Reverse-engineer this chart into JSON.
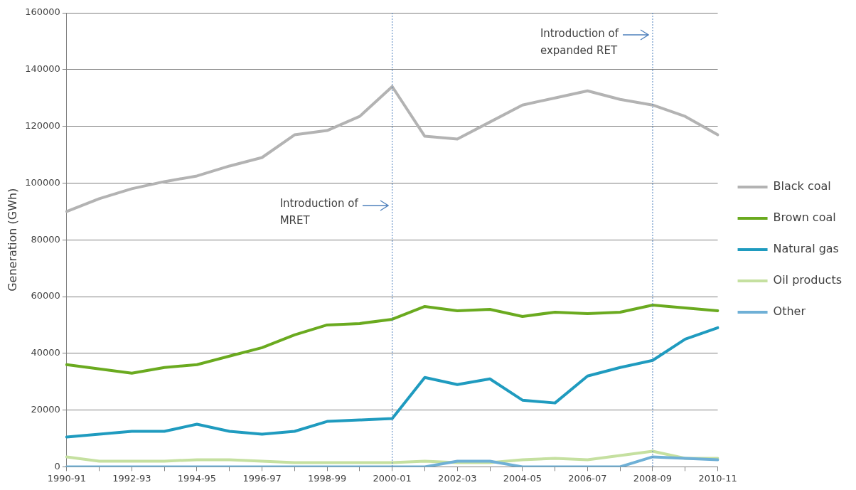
{
  "chart_data": {
    "type": "line",
    "ylabel": "Generation (GWh)",
    "categories": [
      "1990-91",
      null,
      "1992-93",
      null,
      "1994-95",
      null,
      "1996-97",
      null,
      "1998-99",
      null,
      "2000-01",
      null,
      "2002-03",
      null,
      "2004-05",
      null,
      "2006-07",
      null,
      "2008-09",
      null,
      "2010-11"
    ],
    "series": [
      {
        "name": "Black coal",
        "color": "#b3b3b3",
        "values": [
          90000,
          94500,
          98000,
          100500,
          102500,
          106000,
          109000,
          117000,
          118500,
          123500,
          134000,
          116500,
          115500,
          121500,
          127500,
          130000,
          132500,
          129500,
          127500,
          123500,
          117000
        ]
      },
      {
        "name": "Brown coal",
        "color": "#6aaa1f",
        "values": [
          36000,
          34500,
          33000,
          35000,
          36000,
          39000,
          42000,
          46500,
          50000,
          50500,
          52000,
          56500,
          55000,
          55500,
          53000,
          54500,
          54000,
          54500,
          57000,
          56000,
          55000
        ]
      },
      {
        "name": "Natural gas",
        "color": "#1f9bbf",
        "values": [
          10500,
          11500,
          12500,
          12500,
          15000,
          12500,
          11500,
          12500,
          16000,
          16500,
          17000,
          31500,
          29000,
          31000,
          23500,
          22500,
          32000,
          35000,
          37500,
          45000,
          49000
        ]
      },
      {
        "name": "Oil products",
        "color": "#c5e0a0",
        "values": [
          3500,
          2000,
          2000,
          2000,
          2500,
          2500,
          2000,
          1500,
          1500,
          1500,
          1500,
          2000,
          1500,
          1500,
          2500,
          3000,
          2500,
          4000,
          5500,
          3000,
          3000
        ]
      },
      {
        "name": "Other",
        "color": "#6fb0d6",
        "values": [
          0,
          0,
          0,
          0,
          0,
          0,
          0,
          0,
          0,
          0,
          0,
          0,
          2000,
          2000,
          0,
          0,
          0,
          0,
          3500,
          3000,
          2500
        ]
      }
    ],
    "ylim": [
      0,
      160000
    ],
    "yticks": [
      0,
      20000,
      40000,
      60000,
      80000,
      100000,
      120000,
      140000,
      160000
    ],
    "grid": "y",
    "legend": "right",
    "marker": "none",
    "line_style": "solid",
    "ref_lines": [
      {
        "axis": "x",
        "value": "2000-01",
        "label": "Introduction of MRET",
        "color": "#4f81bd",
        "line_style": "dotted"
      },
      {
        "axis": "x",
        "value": "2008-09",
        "label": "Introduction of expanded RET",
        "color": "#4f81bd",
        "line_style": "dotted"
      }
    ]
  }
}
